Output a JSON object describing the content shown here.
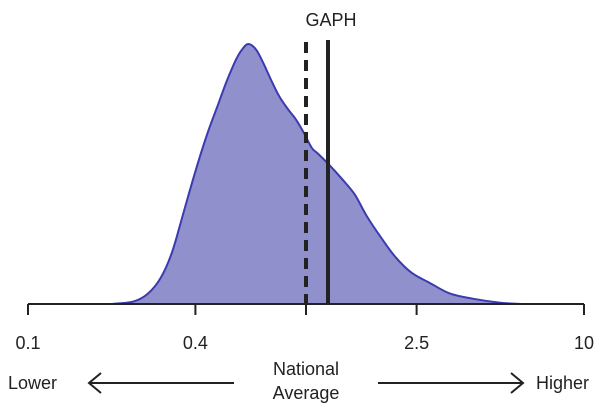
{
  "chart_data": {
    "type": "area",
    "title": "",
    "xlabel": "",
    "ylabel": "",
    "x_scale": "log",
    "xlim": [
      0.1,
      10
    ],
    "ylim": [
      0,
      1
    ],
    "x_ticks": [
      {
        "value": 0.1,
        "label": "0.1"
      },
      {
        "value": 0.4,
        "label": "0.4"
      },
      {
        "value": 2.5,
        "label": "2.5"
      },
      {
        "value": 10,
        "label": "10"
      }
    ],
    "minor_ticks": [
      1
    ],
    "grid": false,
    "series": [
      {
        "color": "#9090cc",
        "line_color": "#3b3bb0",
        "x": [
          0.2,
          0.24,
          0.27,
          0.3,
          0.33,
          0.36,
          0.4,
          0.44,
          0.48,
          0.52,
          0.56,
          0.59,
          0.62,
          0.66,
          0.7,
          0.75,
          0.8,
          0.86,
          0.92,
          0.98,
          1.05,
          1.1,
          1.2,
          1.35,
          1.5,
          1.65,
          1.85,
          2.1,
          2.4,
          2.8,
          3.3,
          4.0,
          5.0,
          6.0
        ],
        "y": [
          0.0,
          0.01,
          0.04,
          0.1,
          0.2,
          0.34,
          0.51,
          0.65,
          0.76,
          0.86,
          0.94,
          0.98,
          1.0,
          0.98,
          0.93,
          0.86,
          0.8,
          0.75,
          0.71,
          0.66,
          0.6,
          0.58,
          0.54,
          0.48,
          0.42,
          0.34,
          0.26,
          0.18,
          0.12,
          0.08,
          0.04,
          0.02,
          0.005,
          0.0
        ]
      }
    ],
    "reference_lines": [
      {
        "label": "GAPH",
        "x": 1.2,
        "style": "solid"
      },
      {
        "x": 1.0,
        "style": "dashed"
      }
    ],
    "direction": {
      "left_label": "Lower",
      "right_label": "Higher",
      "center_label_line1": "National",
      "center_label_line2": "Average"
    }
  }
}
